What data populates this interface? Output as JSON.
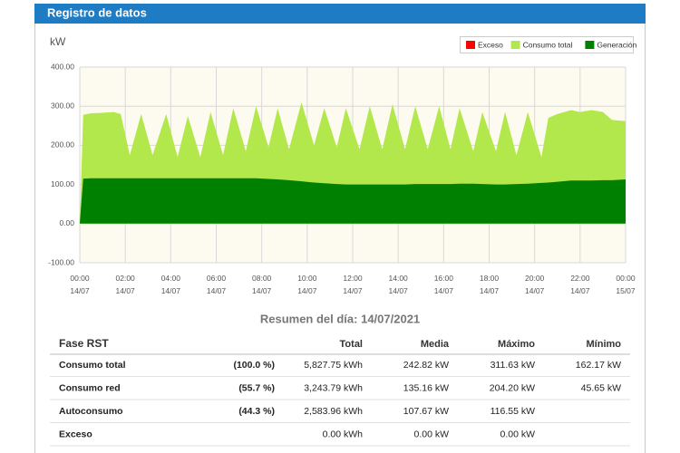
{
  "header": {
    "title": "Registro de datos"
  },
  "chart_data": {
    "type": "area",
    "ylabel": "kW",
    "x": [
      0,
      0.15,
      0.5,
      1,
      1.5,
      1.8,
      2.2,
      2.7,
      3.2,
      3.8,
      4.3,
      4.75,
      5.3,
      5.75,
      6.3,
      6.75,
      7.3,
      7.75,
      8.3,
      8.7,
      9.2,
      9.75,
      10.3,
      10.75,
      11.3,
      11.7,
      12.3,
      12.75,
      13.3,
      13.75,
      14.3,
      14.75,
      15.3,
      15.8,
      16.3,
      16.7,
      17.3,
      17.7,
      18.3,
      18.7,
      19.2,
      19.7,
      20.3,
      20.6,
      21,
      21.6,
      22,
      22.5,
      23,
      23.4,
      24
    ],
    "series": [
      {
        "name": "Exceso",
        "color": "#ff0000",
        "values": [
          0,
          0,
          0,
          0,
          0,
          0,
          0,
          0,
          0,
          0,
          0,
          0,
          0,
          0,
          0,
          0,
          0,
          0,
          0,
          0,
          0,
          0,
          0,
          0,
          0,
          0,
          0,
          0,
          0,
          0,
          0,
          0,
          0,
          0,
          0,
          0,
          0,
          0,
          0,
          0,
          0,
          0,
          0,
          0,
          0,
          0,
          0,
          0,
          0,
          0,
          0
        ]
      },
      {
        "name": "Consumo total",
        "color": "#b2e84c",
        "values": [
          0,
          278,
          282,
          283,
          285,
          280,
          175,
          280,
          175,
          280,
          170,
          275,
          170,
          285,
          175,
          295,
          185,
          300,
          195,
          295,
          190,
          310,
          200,
          295,
          195,
          295,
          190,
          300,
          190,
          305,
          190,
          300,
          190,
          300,
          190,
          295,
          185,
          285,
          185,
          285,
          175,
          285,
          170,
          270,
          280,
          290,
          285,
          290,
          285,
          265,
          262
        ]
      },
      {
        "name": "Generación",
        "color": "#008000",
        "values": [
          0,
          115,
          116,
          116,
          116,
          116,
          116,
          116,
          116,
          116,
          116,
          116,
          116,
          116,
          116,
          116,
          116,
          116,
          114,
          113,
          111,
          108,
          105,
          103,
          101,
          100,
          100,
          100,
          100,
          100,
          100,
          101,
          101,
          101,
          101,
          102,
          102,
          101,
          100,
          100,
          101,
          102,
          104,
          105,
          107,
          110,
          110,
          110,
          111,
          111,
          113
        ]
      }
    ],
    "xlim": [
      0,
      24
    ],
    "xticks": [
      {
        "value": 0,
        "label": "00:00\n14/07"
      },
      {
        "value": 2,
        "label": "02:00\n14/07"
      },
      {
        "value": 4,
        "label": "04:00\n14/07"
      },
      {
        "value": 6,
        "label": "06:00\n14/07"
      },
      {
        "value": 8,
        "label": "08:00\n14/07"
      },
      {
        "value": 10,
        "label": "10:00\n14/07"
      },
      {
        "value": 12,
        "label": "12:00\n14/07"
      },
      {
        "value": 14,
        "label": "14:00\n14/07"
      },
      {
        "value": 16,
        "label": "16:00\n14/07"
      },
      {
        "value": 18,
        "label": "18:00\n14/07"
      },
      {
        "value": 20,
        "label": "20:00\n14/07"
      },
      {
        "value": 22,
        "label": "22:00\n14/07"
      },
      {
        "value": 24,
        "label": "00:00\n15/07"
      }
    ],
    "ylim": [
      -100,
      400
    ],
    "yticks": [
      {
        "value": -100,
        "label": "-100.00"
      },
      {
        "value": 0,
        "label": "0.00"
      },
      {
        "value": 100,
        "label": "100.00"
      },
      {
        "value": 200,
        "label": "200.00"
      },
      {
        "value": 300,
        "label": "300.00"
      },
      {
        "value": 400,
        "label": "400.00"
      }
    ],
    "grid": true,
    "legend": "upper right"
  },
  "summary": {
    "title": "Resumen del día: 14/07/2021",
    "columns": [
      "Fase RST",
      null,
      "Total",
      "Media",
      "Máximo",
      "Mínimo"
    ],
    "rows": [
      [
        "Consumo total",
        "(100.0 %)",
        "5,827.75 kWh",
        "242.82 kW",
        "311.63 kW",
        "162.17 kW"
      ],
      [
        "Consumo red",
        "(55.7 %)",
        "3,243.79 kWh",
        "135.16 kW",
        "204.20 kW",
        "45.65 kW"
      ],
      [
        "Autoconsumo",
        "(44.3 %)",
        "2,583.96 kWh",
        "107.67 kW",
        "116.55 kW",
        null
      ],
      [
        "Exceso",
        null,
        "0.00 kWh",
        "0.00 kW",
        "0.00 kW",
        null
      ]
    ]
  }
}
